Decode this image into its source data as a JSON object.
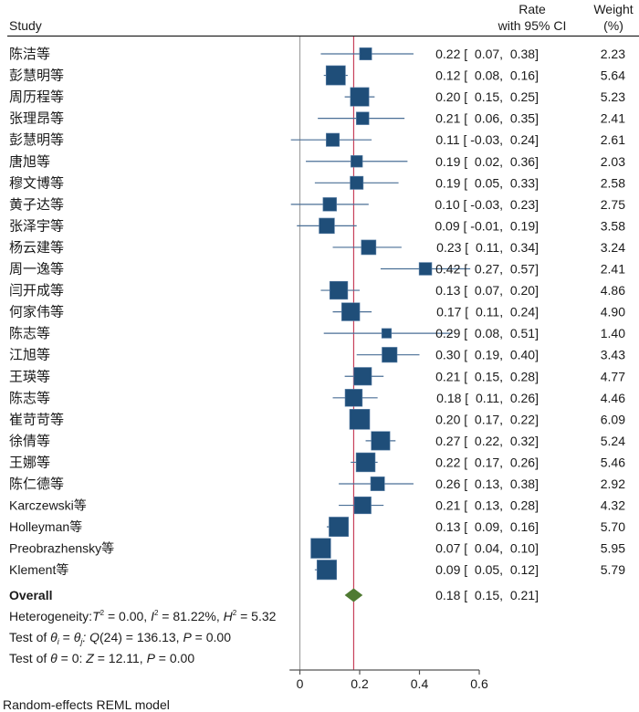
{
  "chart_data": {
    "type": "forest",
    "columns": {
      "study": "Study",
      "rate_line1": "Rate",
      "rate_line2": "with 95% CI",
      "weight_line1": "Weight",
      "weight_line2": "(%)"
    },
    "studies": [
      {
        "name": "陈洁等",
        "rate": 0.22,
        "lo": 0.07,
        "hi": 0.38,
        "ci_text": "0.22 [  0.07,  0.38]",
        "weight": "2.23"
      },
      {
        "name": "彭慧明等",
        "rate": 0.12,
        "lo": 0.08,
        "hi": 0.16,
        "ci_text": "0.12 [  0.08,  0.16]",
        "weight": "5.64"
      },
      {
        "name": "周历程等",
        "rate": 0.2,
        "lo": 0.15,
        "hi": 0.25,
        "ci_text": "0.20 [  0.15,  0.25]",
        "weight": "5.23"
      },
      {
        "name": "张理昂等",
        "rate": 0.21,
        "lo": 0.06,
        "hi": 0.35,
        "ci_text": "0.21 [  0.06,  0.35]",
        "weight": "2.41"
      },
      {
        "name": "彭慧明等",
        "rate": 0.11,
        "lo": -0.03,
        "hi": 0.24,
        "ci_text": "0.11 [ -0.03,  0.24]",
        "weight": "2.61"
      },
      {
        "name": "唐旭等",
        "rate": 0.19,
        "lo": 0.02,
        "hi": 0.36,
        "ci_text": "0.19 [  0.02,  0.36]",
        "weight": "2.03"
      },
      {
        "name": "穆文博等",
        "rate": 0.19,
        "lo": 0.05,
        "hi": 0.33,
        "ci_text": "0.19 [  0.05,  0.33]",
        "weight": "2.58"
      },
      {
        "name": "黄子达等",
        "rate": 0.1,
        "lo": -0.03,
        "hi": 0.23,
        "ci_text": "0.10 [ -0.03,  0.23]",
        "weight": "2.75"
      },
      {
        "name": "张泽宇等",
        "rate": 0.09,
        "lo": -0.01,
        "hi": 0.19,
        "ci_text": "0.09 [ -0.01,  0.19]",
        "weight": "3.58"
      },
      {
        "name": "杨云建等",
        "rate": 0.23,
        "lo": 0.11,
        "hi": 0.34,
        "ci_text": "0.23 [  0.11,  0.34]",
        "weight": "3.24"
      },
      {
        "name": "周一逸等",
        "rate": 0.42,
        "lo": 0.27,
        "hi": 0.57,
        "ci_text": "0.42 [  0.27,  0.57]",
        "weight": "2.41"
      },
      {
        "name": "闫开成等",
        "rate": 0.13,
        "lo": 0.07,
        "hi": 0.2,
        "ci_text": "0.13 [  0.07,  0.20]",
        "weight": "4.86"
      },
      {
        "name": "何家伟等",
        "rate": 0.17,
        "lo": 0.11,
        "hi": 0.24,
        "ci_text": "0.17 [  0.11,  0.24]",
        "weight": "4.90"
      },
      {
        "name": "陈志等",
        "rate": 0.29,
        "lo": 0.08,
        "hi": 0.51,
        "ci_text": "0.29 [  0.08,  0.51]",
        "weight": "1.40"
      },
      {
        "name": "江旭等",
        "rate": 0.3,
        "lo": 0.19,
        "hi": 0.4,
        "ci_text": "0.30 [  0.19,  0.40]",
        "weight": "3.43"
      },
      {
        "name": "王瑛等",
        "rate": 0.21,
        "lo": 0.15,
        "hi": 0.28,
        "ci_text": "0.21 [  0.15,  0.28]",
        "weight": "4.77"
      },
      {
        "name": "陈志等",
        "rate": 0.18,
        "lo": 0.11,
        "hi": 0.26,
        "ci_text": "0.18 [  0.11,  0.26]",
        "weight": "4.46"
      },
      {
        "name": "崔苛苛等",
        "rate": 0.2,
        "lo": 0.17,
        "hi": 0.22,
        "ci_text": "0.20 [  0.17,  0.22]",
        "weight": "6.09"
      },
      {
        "name": "徐倩等",
        "rate": 0.27,
        "lo": 0.22,
        "hi": 0.32,
        "ci_text": "0.27 [  0.22,  0.32]",
        "weight": "5.24"
      },
      {
        "name": "王娜等",
        "rate": 0.22,
        "lo": 0.17,
        "hi": 0.26,
        "ci_text": "0.22 [  0.17,  0.26]",
        "weight": "5.46"
      },
      {
        "name": "陈仁德等",
        "rate": 0.26,
        "lo": 0.13,
        "hi": 0.38,
        "ci_text": "0.26 [  0.13,  0.38]",
        "weight": "2.92"
      },
      {
        "name": "Karczewski等",
        "rate": 0.21,
        "lo": 0.13,
        "hi": 0.28,
        "ci_text": "0.21 [  0.13,  0.28]",
        "weight": "4.32"
      },
      {
        "name": "Holleyman等",
        "rate": 0.13,
        "lo": 0.09,
        "hi": 0.16,
        "ci_text": "0.13 [  0.09,  0.16]",
        "weight": "5.70"
      },
      {
        "name": "Preobrazhensky等",
        "rate": 0.07,
        "lo": 0.04,
        "hi": 0.1,
        "ci_text": "0.07 [  0.04,  0.10]",
        "weight": "5.95"
      },
      {
        "name": "Klement等",
        "rate": 0.09,
        "lo": 0.05,
        "hi": 0.12,
        "ci_text": "0.09 [  0.05,  0.12]",
        "weight": "5.79"
      }
    ],
    "overall": {
      "label": "Overall",
      "rate": 0.18,
      "lo": 0.15,
      "hi": 0.21,
      "ci_text": "0.18 [  0.15,  0.21]"
    },
    "heterogeneity": {
      "prefix": "Heterogeneity:",
      "tau2_label": "T",
      "tau2_value": " = 0.00, ",
      "i2_label": "I",
      "i2_value": " = 81.22%, ",
      "h2_label": "H",
      "h2_value": " = 5.32",
      "sup": "2"
    },
    "test_homogeneity": {
      "prefix": "Test of ",
      "theta_i": "θ",
      "sub_i": "i",
      "eq": " = ",
      "theta_j": "θ",
      "sub_j": "j",
      "q_label": ": Q",
      "q_rest": "(24) = 136.13, ",
      "p_label": "P",
      "p_rest": " = 0.00"
    },
    "test_zero": {
      "prefix": "Test of ",
      "theta": "θ",
      "mid": " = 0: ",
      "z_label": "Z",
      "z_rest": " = 12.11, ",
      "p_label": "P",
      "p_rest": " = 0.00"
    },
    "xaxis": {
      "ticks": [
        0,
        0.2,
        0.4,
        0.6
      ],
      "tick_labels": [
        "0",
        "0.2",
        "0.4",
        "0.6"
      ],
      "range": [
        -0.004,
        0.6
      ]
    },
    "null_line": 0,
    "pooled_line": 0.18,
    "footnote": "Random-effects REML model",
    "colors": {
      "marker": "#1f4e79",
      "ci_line": "#4a6f96",
      "diamond": "#4f7a32",
      "pooled_line": "#c8405a",
      "null_line": "#a0a0a0",
      "axis": "#555555"
    }
  }
}
